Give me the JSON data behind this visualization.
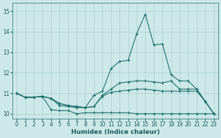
{
  "xlabel": "Humidex (Indice chaleur)",
  "xlim": [
    -0.5,
    23.5
  ],
  "ylim": [
    9.75,
    15.4
  ],
  "yticks": [
    10,
    11,
    12,
    13,
    14,
    15
  ],
  "xticks": [
    0,
    1,
    2,
    3,
    4,
    5,
    6,
    7,
    8,
    9,
    10,
    11,
    12,
    13,
    14,
    15,
    16,
    17,
    18,
    19,
    20,
    21,
    22,
    23
  ],
  "line_color": "#1a6e6a",
  "bg_color": "#cce8e8",
  "grid_color": "#aacccc",
  "lines": [
    {
      "x": [
        0,
        1,
        2,
        3,
        4,
        5,
        6,
        7,
        8,
        9,
        10,
        11,
        12,
        13,
        14,
        15,
        16,
        17,
        18,
        19,
        20,
        21,
        22,
        23
      ],
      "y": [
        11.0,
        10.8,
        10.8,
        10.85,
        10.2,
        10.15,
        10.15,
        10.0,
        10.05,
        10.05,
        10.05,
        10.05,
        10.05,
        10.05,
        10.0,
        10.0,
        10.0,
        10.0,
        10.0,
        10.0,
        10.0,
        10.0,
        10.0,
        10.0
      ]
    },
    {
      "x": [
        0,
        1,
        2,
        3,
        4,
        5,
        6,
        7,
        8,
        9,
        10,
        11,
        12,
        13,
        14,
        15,
        16,
        17,
        18,
        19,
        20,
        21,
        22,
        23
      ],
      "y": [
        11.0,
        10.8,
        10.8,
        10.85,
        10.75,
        10.5,
        10.4,
        10.35,
        10.3,
        10.35,
        10.85,
        11.05,
        11.1,
        11.15,
        11.2,
        11.2,
        11.15,
        11.1,
        11.1,
        11.1,
        11.1,
        11.1,
        10.6,
        10.0
      ]
    },
    {
      "x": [
        0,
        1,
        2,
        3,
        4,
        5,
        6,
        7,
        8,
        9,
        10,
        11,
        12,
        13,
        14,
        15,
        16,
        17,
        18,
        19,
        20,
        21,
        22,
        23
      ],
      "y": [
        11.0,
        10.8,
        10.8,
        10.85,
        10.75,
        10.5,
        10.4,
        10.35,
        10.3,
        10.35,
        10.9,
        11.2,
        11.5,
        11.55,
        11.6,
        11.6,
        11.55,
        11.5,
        11.6,
        11.2,
        11.2,
        11.2,
        10.6,
        10.0
      ]
    },
    {
      "x": [
        0,
        1,
        2,
        3,
        4,
        5,
        6,
        7,
        8,
        9,
        10,
        11,
        12,
        13,
        14,
        15,
        16,
        17,
        18,
        19,
        20,
        21,
        22,
        23
      ],
      "y": [
        11.0,
        10.8,
        10.8,
        10.85,
        10.75,
        10.4,
        10.35,
        10.3,
        10.3,
        10.9,
        11.1,
        12.2,
        12.55,
        12.6,
        13.9,
        14.85,
        13.35,
        13.4,
        11.9,
        11.6,
        11.6,
        11.2,
        10.6,
        10.0
      ]
    }
  ]
}
